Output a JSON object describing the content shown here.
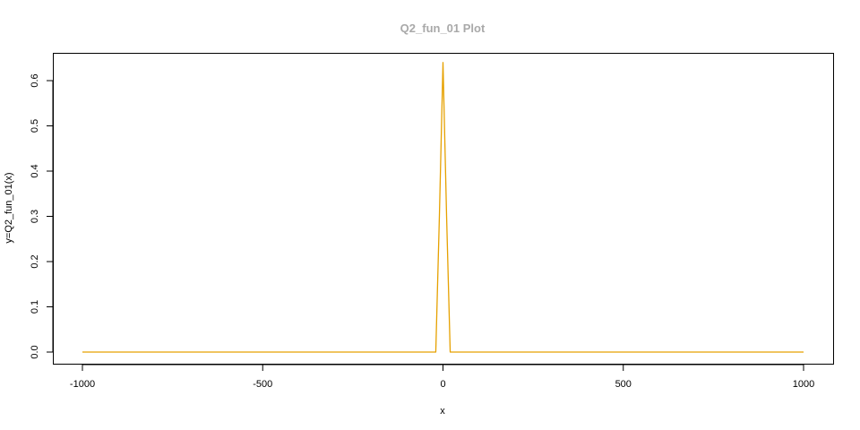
{
  "chart_data": {
    "type": "line",
    "title": "Q2_fun_01 Plot",
    "xlabel": "x",
    "ylabel": "y=Q2_fun_01(x)",
    "xlim": [
      -1000,
      1000
    ],
    "ylim": [
      0,
      0.64
    ],
    "xticks": [
      -1000,
      -500,
      0,
      500,
      1000
    ],
    "xtick_labels": [
      "-1000",
      "-500",
      "0",
      "500",
      "1000"
    ],
    "yticks": [
      0,
      0.1,
      0.2,
      0.3,
      0.4,
      0.5,
      0.6
    ],
    "ytick_labels": [
      "0.0",
      "0.1",
      "0.2",
      "0.3",
      "0.4",
      "0.5",
      "0.6"
    ],
    "grid": false,
    "legend": "none",
    "series": [
      {
        "color": "#e6a100",
        "x": [
          -1000,
          -20,
          -10,
          0,
          10,
          20,
          1000
        ],
        "y": [
          0,
          0,
          0.3,
          0.64,
          0.3,
          0,
          0
        ]
      }
    ]
  }
}
